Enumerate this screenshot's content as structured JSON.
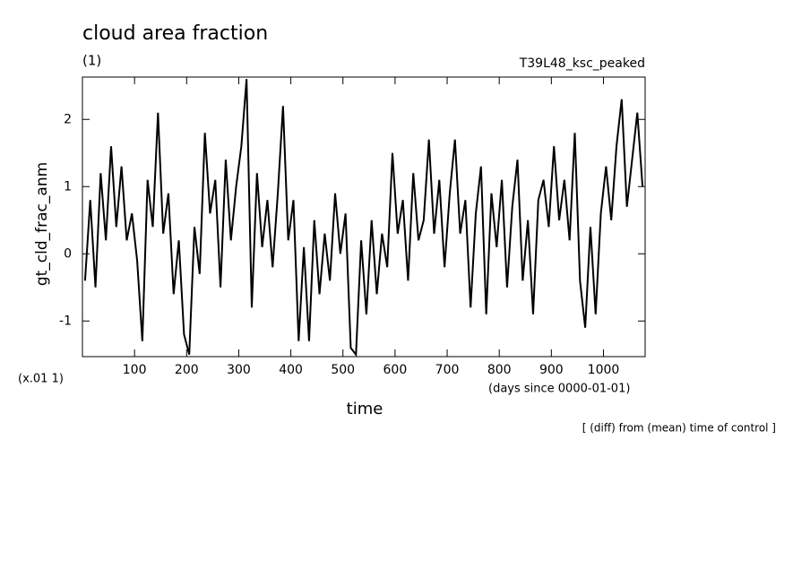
{
  "chart_data": {
    "type": "line",
    "title": "cloud area fraction",
    "subtitle": "(1)",
    "run_label": "T39L48_ksc_peaked",
    "ylabel": "gt_cld_frac_anm",
    "y_scale_label": "(x.01 1)",
    "x_units_label": "(days since 0000-01-01)",
    "xlabel": "time",
    "note": "[ (diff) from (mean) time of control ]",
    "xlim": [
      0,
      1080
    ],
    "xticks": [
      100,
      200,
      300,
      400,
      500,
      600,
      700,
      800,
      900,
      1000
    ],
    "ylim": [
      -1.53,
      2.63
    ],
    "yticks": [
      -1,
      0,
      1,
      2
    ],
    "color": "#000000",
    "x": [
      5,
      15,
      25,
      35,
      45,
      55,
      65,
      75,
      85,
      95,
      105,
      115,
      125,
      135,
      145,
      155,
      165,
      175,
      185,
      195,
      205,
      215,
      225,
      235,
      245,
      255,
      265,
      275,
      285,
      295,
      305,
      315,
      325,
      335,
      345,
      355,
      365,
      375,
      385,
      395,
      405,
      415,
      425,
      435,
      445,
      455,
      465,
      475,
      485,
      495,
      505,
      515,
      525,
      535,
      545,
      555,
      565,
      575,
      585,
      595,
      605,
      615,
      625,
      635,
      645,
      655,
      665,
      675,
      685,
      695,
      705,
      715,
      725,
      735,
      745,
      755,
      765,
      775,
      785,
      795,
      805,
      815,
      825,
      835,
      845,
      855,
      865,
      875,
      885,
      895,
      905,
      915,
      925,
      935,
      945,
      955,
      965,
      975,
      985,
      995,
      1005,
      1015,
      1025,
      1035,
      1045,
      1055,
      1065,
      1075
    ],
    "values": [
      -0.4,
      0.8,
      -0.5,
      1.2,
      0.2,
      1.6,
      0.4,
      1.3,
      0.2,
      0.6,
      -0.1,
      -1.3,
      1.1,
      0.4,
      2.1,
      0.3,
      0.9,
      -0.6,
      0.2,
      -1.2,
      -1.5,
      0.4,
      -0.3,
      1.8,
      0.6,
      1.1,
      -0.5,
      1.4,
      0.2,
      1.0,
      1.6,
      2.6,
      -0.8,
      1.2,
      0.1,
      0.8,
      -0.2,
      0.9,
      2.2,
      0.2,
      0.8,
      -1.3,
      0.1,
      -1.3,
      0.5,
      -0.6,
      0.3,
      -0.4,
      0.9,
      0.0,
      0.6,
      -1.4,
      -1.5,
      0.2,
      -0.9,
      0.5,
      -0.6,
      0.3,
      -0.2,
      1.5,
      0.3,
      0.8,
      -0.4,
      1.2,
      0.2,
      0.5,
      1.7,
      0.3,
      1.1,
      -0.2,
      0.9,
      1.7,
      0.3,
      0.8,
      -0.8,
      0.6,
      1.3,
      -0.9,
      0.9,
      0.1,
      1.1,
      -0.5,
      0.7,
      1.4,
      -0.4,
      0.5,
      -0.9,
      0.8,
      1.1,
      0.4,
      1.6,
      0.5,
      1.1,
      0.2,
      1.8,
      -0.4,
      -1.1,
      0.4,
      -0.9,
      0.6,
      1.3,
      0.5,
      1.6,
      2.3,
      0.7,
      1.4,
      2.1,
      1.0
    ]
  }
}
